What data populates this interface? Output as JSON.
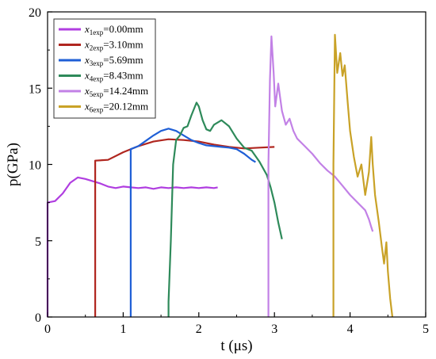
{
  "chart_data": {
    "type": "line",
    "xlabel": "t (μs)",
    "ylabel": "p(GPa)",
    "xlim": [
      0,
      5
    ],
    "ylim": [
      0,
      20
    ],
    "xticks": [
      "0",
      "1",
      "2",
      "3",
      "4",
      "5"
    ],
    "yticks": [
      "0",
      "5",
      "10",
      "15",
      "20"
    ],
    "grid": false,
    "legend_position": "top-left",
    "series": [
      {
        "name": "x1exp=0.00mm",
        "label": {
          "var": "x",
          "sub": "1exp",
          "rest": "=0.00mm"
        },
        "color": "#b03ee0",
        "points": [
          [
            0.0,
            0.0
          ],
          [
            0.0,
            7.5
          ],
          [
            0.1,
            7.6
          ],
          [
            0.2,
            8.1
          ],
          [
            0.3,
            8.8
          ],
          [
            0.4,
            9.15
          ],
          [
            0.5,
            9.05
          ],
          [
            0.6,
            8.9
          ],
          [
            0.7,
            8.75
          ],
          [
            0.8,
            8.55
          ],
          [
            0.9,
            8.45
          ],
          [
            1.0,
            8.55
          ],
          [
            1.1,
            8.5
          ],
          [
            1.2,
            8.45
          ],
          [
            1.3,
            8.5
          ],
          [
            1.4,
            8.4
          ],
          [
            1.5,
            8.5
          ],
          [
            1.6,
            8.45
          ],
          [
            1.7,
            8.5
          ],
          [
            1.8,
            8.45
          ],
          [
            1.9,
            8.5
          ],
          [
            2.0,
            8.45
          ],
          [
            2.1,
            8.5
          ],
          [
            2.2,
            8.45
          ],
          [
            2.25,
            8.5
          ]
        ]
      },
      {
        "name": "x2exp=3.10mm",
        "label": {
          "var": "x",
          "sub": "2exp",
          "rest": "=3.10mm"
        },
        "color": "#b0261f",
        "points": [
          [
            0.63,
            0.0
          ],
          [
            0.63,
            10.25
          ],
          [
            0.8,
            10.3
          ],
          [
            1.0,
            10.8
          ],
          [
            1.2,
            11.2
          ],
          [
            1.4,
            11.5
          ],
          [
            1.6,
            11.65
          ],
          [
            1.8,
            11.6
          ],
          [
            2.0,
            11.5
          ],
          [
            2.2,
            11.3
          ],
          [
            2.4,
            11.15
          ],
          [
            2.6,
            11.05
          ],
          [
            2.8,
            11.1
          ],
          [
            3.0,
            11.15
          ]
        ]
      },
      {
        "name": "x3exp=5.69mm",
        "label": {
          "var": "x",
          "sub": "3exp",
          "rest": "=5.69mm"
        },
        "color": "#1f5fd6",
        "points": [
          [
            1.1,
            0.0
          ],
          [
            1.1,
            11.0
          ],
          [
            1.2,
            11.2
          ],
          [
            1.3,
            11.55
          ],
          [
            1.4,
            11.9
          ],
          [
            1.5,
            12.2
          ],
          [
            1.6,
            12.35
          ],
          [
            1.7,
            12.2
          ],
          [
            1.8,
            11.9
          ],
          [
            1.9,
            11.6
          ],
          [
            2.0,
            11.4
          ],
          [
            2.1,
            11.25
          ],
          [
            2.2,
            11.2
          ],
          [
            2.3,
            11.15
          ],
          [
            2.4,
            11.1
          ],
          [
            2.5,
            11.0
          ],
          [
            2.6,
            10.7
          ],
          [
            2.7,
            10.3
          ],
          [
            2.75,
            10.15
          ]
        ]
      },
      {
        "name": "x4exp=8.43mm",
        "label": {
          "var": "x",
          "sub": "4exp",
          "rest": "=8.43mm"
        },
        "color": "#2e8a5a",
        "points": [
          [
            1.6,
            0.0
          ],
          [
            1.6,
            1.0
          ],
          [
            1.63,
            5.0
          ],
          [
            1.66,
            10.0
          ],
          [
            1.7,
            11.6
          ],
          [
            1.75,
            11.9
          ],
          [
            1.8,
            12.4
          ],
          [
            1.85,
            12.5
          ],
          [
            1.9,
            13.2
          ],
          [
            1.97,
            14.05
          ],
          [
            2.0,
            13.8
          ],
          [
            2.05,
            12.9
          ],
          [
            2.1,
            12.3
          ],
          [
            2.15,
            12.2
          ],
          [
            2.2,
            12.6
          ],
          [
            2.3,
            12.9
          ],
          [
            2.4,
            12.5
          ],
          [
            2.5,
            11.7
          ],
          [
            2.6,
            11.1
          ],
          [
            2.7,
            10.9
          ],
          [
            2.8,
            10.2
          ],
          [
            2.9,
            9.3
          ],
          [
            2.95,
            8.5
          ],
          [
            3.0,
            7.5
          ],
          [
            3.05,
            6.2
          ],
          [
            3.1,
            5.1
          ]
        ]
      },
      {
        "name": "x5exp=14.24mm",
        "label": {
          "var": "x",
          "sub": "5exp",
          "rest": "=14.24mm"
        },
        "color": "#c281e6",
        "points": [
          [
            2.92,
            0.0
          ],
          [
            2.92,
            10.0
          ],
          [
            2.94,
            15.5
          ],
          [
            2.96,
            18.4
          ],
          [
            2.99,
            16.0
          ],
          [
            3.01,
            13.8
          ],
          [
            3.05,
            15.3
          ],
          [
            3.1,
            13.5
          ],
          [
            3.15,
            12.6
          ],
          [
            3.2,
            13.0
          ],
          [
            3.25,
            12.2
          ],
          [
            3.3,
            11.7
          ],
          [
            3.4,
            11.2
          ],
          [
            3.5,
            10.7
          ],
          [
            3.6,
            10.1
          ],
          [
            3.7,
            9.6
          ],
          [
            3.8,
            9.2
          ],
          [
            3.9,
            8.6
          ],
          [
            4.0,
            8.0
          ],
          [
            4.1,
            7.5
          ],
          [
            4.2,
            7.0
          ],
          [
            4.25,
            6.4
          ],
          [
            4.28,
            5.9
          ],
          [
            4.3,
            5.6
          ]
        ]
      },
      {
        "name": "x6exp=20.12mm",
        "label": {
          "var": "x",
          "sub": "6exp",
          "rest": "=20.12mm"
        },
        "color": "#c9a227",
        "points": [
          [
            3.78,
            0.0
          ],
          [
            3.78,
            10.0
          ],
          [
            3.8,
            18.5
          ],
          [
            3.83,
            16.0
          ],
          [
            3.87,
            17.3
          ],
          [
            3.9,
            15.8
          ],
          [
            3.93,
            16.5
          ],
          [
            3.97,
            14.0
          ],
          [
            4.0,
            12.2
          ],
          [
            4.05,
            10.5
          ],
          [
            4.1,
            9.2
          ],
          [
            4.15,
            10.0
          ],
          [
            4.2,
            8.0
          ],
          [
            4.25,
            9.5
          ],
          [
            4.28,
            11.8
          ],
          [
            4.3,
            10.0
          ],
          [
            4.33,
            8.0
          ],
          [
            4.38,
            6.2
          ],
          [
            4.42,
            4.6
          ],
          [
            4.45,
            3.5
          ],
          [
            4.48,
            4.9
          ],
          [
            4.5,
            3.0
          ],
          [
            4.53,
            1.2
          ],
          [
            4.56,
            0.0
          ]
        ]
      }
    ]
  }
}
